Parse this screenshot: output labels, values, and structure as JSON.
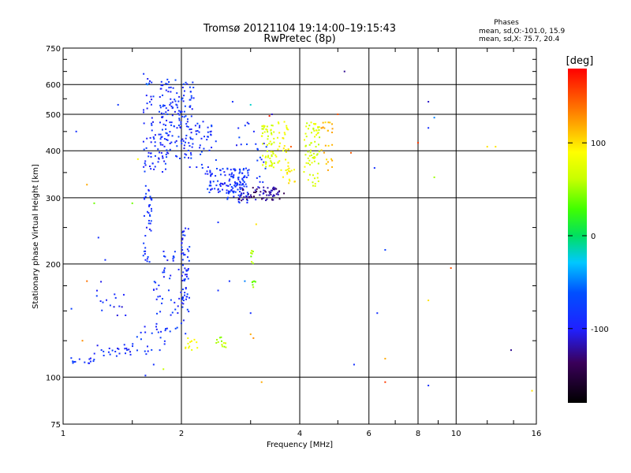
{
  "chart_data": {
    "type": "scatter",
    "title": "Tromsø 20121104 19:14:00–19:15:43",
    "subtitle": "RwPretec (8p)",
    "xlabel": "Frequency [MHz]",
    "ylabel": "Stationary phase Virtual Height [km]",
    "x_scale": "log",
    "y_scale": "log",
    "xlim": [
      1,
      16
    ],
    "ylim": [
      75,
      750
    ],
    "x_ticks": [
      1,
      2,
      4,
      6,
      8,
      10,
      16
    ],
    "y_ticks": [
      75,
      100,
      200,
      300,
      400,
      500,
      600,
      750
    ],
    "x_tick_labels": [
      "1",
      "2",
      "4",
      "6",
      "8",
      "10",
      "16"
    ],
    "y_tick_labels": [
      "75",
      "100",
      "200",
      "300",
      "400",
      "500",
      "600",
      "750"
    ],
    "grid": true,
    "colorbar": {
      "title": "[deg]",
      "range": [
        -180,
        180
      ],
      "tick_values": [
        100,
        0,
        -100
      ],
      "tick_labels": [
        "100",
        "0",
        "-100"
      ]
    },
    "info": {
      "heading": "Phases",
      "line1": "mean, sd,O:-101.0, 15.9",
      "line2": "mean, sd,X:  75.7, 20.4"
    },
    "clusters": [
      {
        "f": [
          1.02,
          1.2
        ],
        "h": [
          108,
          113
        ],
        "phase": -100,
        "n": 14
      },
      {
        "f": [
          1.2,
          1.5
        ],
        "h": [
          113,
          122
        ],
        "phase": -100,
        "n": 22
      },
      {
        "f": [
          1.5,
          1.9
        ],
        "h": [
          115,
          140
        ],
        "phase": -100,
        "n": 22
      },
      {
        "f": [
          1.15,
          1.45
        ],
        "h": [
          145,
          180
        ],
        "phase": -105,
        "n": 16
      },
      {
        "f": [
          1.6,
          1.68
        ],
        "h": [
          200,
          330
        ],
        "phase": -100,
        "n": 40
      },
      {
        "f": [
          1.6,
          1.85
        ],
        "h": [
          350,
          450
        ],
        "phase": -100,
        "n": 45
      },
      {
        "f": [
          1.6,
          1.7
        ],
        "h": [
          450,
          650
        ],
        "phase": -100,
        "n": 22
      },
      {
        "f": [
          1.75,
          2.15
        ],
        "h": [
          380,
          620
        ],
        "phase": -100,
        "n": 160
      },
      {
        "f": [
          1.7,
          2.1
        ],
        "h": [
          130,
          220
        ],
        "phase": -100,
        "n": 70
      },
      {
        "f": [
          2.0,
          2.1
        ],
        "h": [
          160,
          250
        ],
        "phase": -100,
        "n": 40
      },
      {
        "f": [
          2.1,
          2.45
        ],
        "h": [
          360,
          480
        ],
        "phase": -100,
        "n": 40
      },
      {
        "f": [
          2.3,
          2.9
        ],
        "h": [
          310,
          360
        ],
        "phase": -100,
        "n": 90
      },
      {
        "f": [
          2.6,
          3.0
        ],
        "h": [
          290,
          360
        ],
        "phase": -95,
        "n": 55
      },
      {
        "f": [
          2.75,
          3.1
        ],
        "h": [
          400,
          480
        ],
        "phase": -100,
        "n": 10
      },
      {
        "f": [
          2.8,
          3.65
        ],
        "h": [
          295,
          320
        ],
        "phase": -130,
        "n": 70
      },
      {
        "f": [
          3.1,
          3.3
        ],
        "h": [
          320,
          420
        ],
        "phase": -100,
        "n": 14
      },
      {
        "f": [
          3.2,
          3.45
        ],
        "h": [
          360,
          470
        ],
        "phase": 70,
        "n": 60
      },
      {
        "f": [
          3.45,
          3.75
        ],
        "h": [
          340,
          480
        ],
        "phase": 85,
        "n": 35
      },
      {
        "f": [
          3.7,
          3.9
        ],
        "h": [
          325,
          360
        ],
        "phase": 100,
        "n": 12
      },
      {
        "f": [
          4.1,
          4.5
        ],
        "h": [
          320,
          480
        ],
        "phase": 70,
        "n": 70
      },
      {
        "f": [
          4.5,
          4.85
        ],
        "h": [
          350,
          480
        ],
        "phase": 115,
        "n": 25
      },
      {
        "f": [
          2.0,
          2.2
        ],
        "h": [
          118,
          128
        ],
        "phase": 90,
        "n": 12
      },
      {
        "f": [
          2.45,
          2.65
        ],
        "h": [
          120,
          128
        ],
        "phase": 60,
        "n": 12
      },
      {
        "f": [
          3.0,
          3.05
        ],
        "h": [
          200,
          225
        ],
        "phase": 50,
        "n": 8
      },
      {
        "f": [
          3.0,
          3.1
        ],
        "h": [
          172,
          180
        ],
        "phase": 40,
        "n": 6
      }
    ],
    "scattered_points": [
      {
        "f": 1.08,
        "h": 450,
        "phase": -100
      },
      {
        "f": 1.38,
        "h": 530,
        "phase": -95
      },
      {
        "f": 1.64,
        "h": 600,
        "phase": -60
      },
      {
        "f": 1.78,
        "h": 610,
        "phase": -100
      },
      {
        "f": 1.55,
        "h": 380,
        "phase": 90
      },
      {
        "f": 1.5,
        "h": 290,
        "phase": 40
      },
      {
        "f": 1.2,
        "h": 290,
        "phase": 40
      },
      {
        "f": 1.23,
        "h": 235,
        "phase": -100
      },
      {
        "f": 1.28,
        "h": 205,
        "phase": -100
      },
      {
        "f": 1.15,
        "h": 325,
        "phase": 120
      },
      {
        "f": 1.15,
        "h": 180,
        "phase": 140
      },
      {
        "f": 1.05,
        "h": 152,
        "phase": -90
      },
      {
        "f": 1.12,
        "h": 125,
        "phase": 130
      },
      {
        "f": 1.62,
        "h": 101,
        "phase": -100
      },
      {
        "f": 1.7,
        "h": 108,
        "phase": -100
      },
      {
        "f": 1.8,
        "h": 105,
        "phase": 60
      },
      {
        "f": 2.05,
        "h": 120,
        "phase": 80
      },
      {
        "f": 2.48,
        "h": 170,
        "phase": -100
      },
      {
        "f": 2.48,
        "h": 258,
        "phase": -100
      },
      {
        "f": 2.65,
        "h": 180,
        "phase": -100
      },
      {
        "f": 3.0,
        "h": 530,
        "phase": -20
      },
      {
        "f": 2.7,
        "h": 540,
        "phase": -100
      },
      {
        "f": 3.35,
        "h": 495,
        "phase": 170
      },
      {
        "f": 3.4,
        "h": 500,
        "phase": -120
      },
      {
        "f": 3.8,
        "h": 410,
        "phase": 150
      },
      {
        "f": 3.2,
        "h": 97,
        "phase": 120
      },
      {
        "f": 3.0,
        "h": 130,
        "phase": 120
      },
      {
        "f": 3.1,
        "h": 255,
        "phase": 100
      },
      {
        "f": 2.9,
        "h": 180,
        "phase": -60
      },
      {
        "f": 3.0,
        "h": 148,
        "phase": -100
      },
      {
        "f": 3.05,
        "h": 127,
        "phase": 130
      },
      {
        "f": 5.0,
        "h": 500,
        "phase": 150
      },
      {
        "f": 5.2,
        "h": 650,
        "phase": -130
      },
      {
        "f": 5.4,
        "h": 395,
        "phase": 150
      },
      {
        "f": 5.5,
        "h": 108,
        "phase": -100
      },
      {
        "f": 6.2,
        "h": 360,
        "phase": -100
      },
      {
        "f": 6.3,
        "h": 148,
        "phase": -100
      },
      {
        "f": 6.6,
        "h": 218,
        "phase": -90
      },
      {
        "f": 6.6,
        "h": 112,
        "phase": 120
      },
      {
        "f": 6.6,
        "h": 97,
        "phase": 160
      },
      {
        "f": 8.0,
        "h": 420,
        "phase": 160
      },
      {
        "f": 8.5,
        "h": 540,
        "phase": -120
      },
      {
        "f": 8.5,
        "h": 460,
        "phase": -100
      },
      {
        "f": 8.8,
        "h": 490,
        "phase": -60
      },
      {
        "f": 8.8,
        "h": 340,
        "phase": 50
      },
      {
        "f": 8.5,
        "h": 160,
        "phase": 100
      },
      {
        "f": 8.5,
        "h": 95,
        "phase": -100
      },
      {
        "f": 9.7,
        "h": 195,
        "phase": 150
      },
      {
        "f": 12.0,
        "h": 410,
        "phase": 100
      },
      {
        "f": 12.6,
        "h": 410,
        "phase": 100
      },
      {
        "f": 13.8,
        "h": 118,
        "phase": -130
      },
      {
        "f": 15.6,
        "h": 92,
        "phase": 100
      }
    ]
  }
}
